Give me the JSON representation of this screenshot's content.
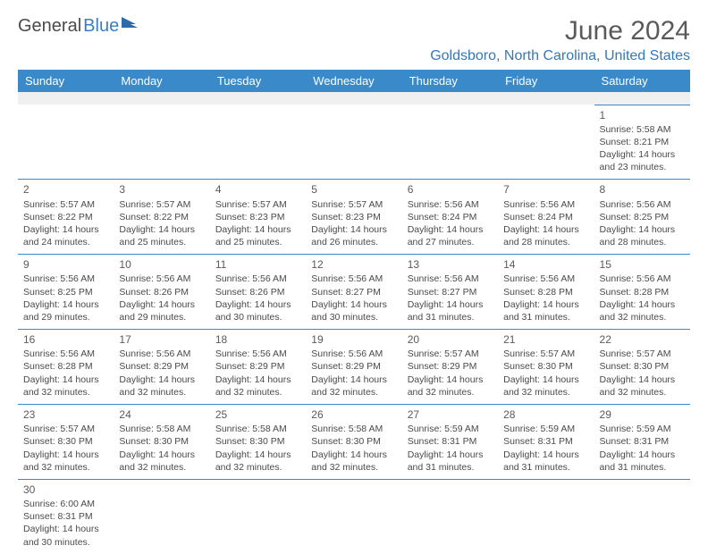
{
  "logo": {
    "word1": "General",
    "word2": "Blue"
  },
  "title": "June 2024",
  "location": "Goldsboro, North Carolina, United States",
  "colors": {
    "header_bg": "#3a8ac9",
    "header_text": "#ffffff",
    "accent": "#3478bc",
    "text": "#4a4a4a",
    "logo_gray": "#4a4a4a",
    "logo_blue": "#3a7fc4",
    "border": "#3a8ac9",
    "blank_bg": "#f0f0f0"
  },
  "daysOfWeek": [
    "Sunday",
    "Monday",
    "Tuesday",
    "Wednesday",
    "Thursday",
    "Friday",
    "Saturday"
  ],
  "grid": [
    [
      null,
      null,
      null,
      null,
      null,
      null,
      {
        "n": "1",
        "sr": "5:58 AM",
        "ss": "8:21 PM",
        "dl": "14 hours and 23 minutes."
      }
    ],
    [
      {
        "n": "2",
        "sr": "5:57 AM",
        "ss": "8:22 PM",
        "dl": "14 hours and 24 minutes."
      },
      {
        "n": "3",
        "sr": "5:57 AM",
        "ss": "8:22 PM",
        "dl": "14 hours and 25 minutes."
      },
      {
        "n": "4",
        "sr": "5:57 AM",
        "ss": "8:23 PM",
        "dl": "14 hours and 25 minutes."
      },
      {
        "n": "5",
        "sr": "5:57 AM",
        "ss": "8:23 PM",
        "dl": "14 hours and 26 minutes."
      },
      {
        "n": "6",
        "sr": "5:56 AM",
        "ss": "8:24 PM",
        "dl": "14 hours and 27 minutes."
      },
      {
        "n": "7",
        "sr": "5:56 AM",
        "ss": "8:24 PM",
        "dl": "14 hours and 28 minutes."
      },
      {
        "n": "8",
        "sr": "5:56 AM",
        "ss": "8:25 PM",
        "dl": "14 hours and 28 minutes."
      }
    ],
    [
      {
        "n": "9",
        "sr": "5:56 AM",
        "ss": "8:25 PM",
        "dl": "14 hours and 29 minutes."
      },
      {
        "n": "10",
        "sr": "5:56 AM",
        "ss": "8:26 PM",
        "dl": "14 hours and 29 minutes."
      },
      {
        "n": "11",
        "sr": "5:56 AM",
        "ss": "8:26 PM",
        "dl": "14 hours and 30 minutes."
      },
      {
        "n": "12",
        "sr": "5:56 AM",
        "ss": "8:27 PM",
        "dl": "14 hours and 30 minutes."
      },
      {
        "n": "13",
        "sr": "5:56 AM",
        "ss": "8:27 PM",
        "dl": "14 hours and 31 minutes."
      },
      {
        "n": "14",
        "sr": "5:56 AM",
        "ss": "8:28 PM",
        "dl": "14 hours and 31 minutes."
      },
      {
        "n": "15",
        "sr": "5:56 AM",
        "ss": "8:28 PM",
        "dl": "14 hours and 32 minutes."
      }
    ],
    [
      {
        "n": "16",
        "sr": "5:56 AM",
        "ss": "8:28 PM",
        "dl": "14 hours and 32 minutes."
      },
      {
        "n": "17",
        "sr": "5:56 AM",
        "ss": "8:29 PM",
        "dl": "14 hours and 32 minutes."
      },
      {
        "n": "18",
        "sr": "5:56 AM",
        "ss": "8:29 PM",
        "dl": "14 hours and 32 minutes."
      },
      {
        "n": "19",
        "sr": "5:56 AM",
        "ss": "8:29 PM",
        "dl": "14 hours and 32 minutes."
      },
      {
        "n": "20",
        "sr": "5:57 AM",
        "ss": "8:29 PM",
        "dl": "14 hours and 32 minutes."
      },
      {
        "n": "21",
        "sr": "5:57 AM",
        "ss": "8:30 PM",
        "dl": "14 hours and 32 minutes."
      },
      {
        "n": "22",
        "sr": "5:57 AM",
        "ss": "8:30 PM",
        "dl": "14 hours and 32 minutes."
      }
    ],
    [
      {
        "n": "23",
        "sr": "5:57 AM",
        "ss": "8:30 PM",
        "dl": "14 hours and 32 minutes."
      },
      {
        "n": "24",
        "sr": "5:58 AM",
        "ss": "8:30 PM",
        "dl": "14 hours and 32 minutes."
      },
      {
        "n": "25",
        "sr": "5:58 AM",
        "ss": "8:30 PM",
        "dl": "14 hours and 32 minutes."
      },
      {
        "n": "26",
        "sr": "5:58 AM",
        "ss": "8:30 PM",
        "dl": "14 hours and 32 minutes."
      },
      {
        "n": "27",
        "sr": "5:59 AM",
        "ss": "8:31 PM",
        "dl": "14 hours and 31 minutes."
      },
      {
        "n": "28",
        "sr": "5:59 AM",
        "ss": "8:31 PM",
        "dl": "14 hours and 31 minutes."
      },
      {
        "n": "29",
        "sr": "5:59 AM",
        "ss": "8:31 PM",
        "dl": "14 hours and 31 minutes."
      }
    ],
    [
      {
        "n": "30",
        "sr": "6:00 AM",
        "ss": "8:31 PM",
        "dl": "14 hours and 30 minutes."
      },
      null,
      null,
      null,
      null,
      null,
      null
    ]
  ],
  "labels": {
    "sunrise": "Sunrise:",
    "sunset": "Sunset:",
    "daylight": "Daylight:"
  }
}
